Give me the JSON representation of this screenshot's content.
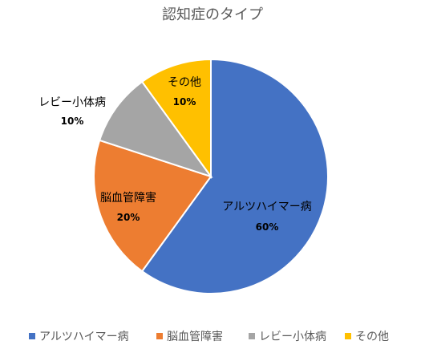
{
  "chart_data": {
    "type": "pie",
    "title": "認知症のタイプ",
    "categories": [
      "アルツハイマー病",
      "脳血管障害",
      "レビー小体病",
      "その他"
    ],
    "values": [
      60,
      20,
      10,
      10
    ],
    "value_labels": [
      "60%",
      "20%",
      "10%",
      "10%"
    ],
    "colors": [
      "#4472C4",
      "#ED7D31",
      "#A5A5A5",
      "#FFC000"
    ],
    "legend": "bottom",
    "start": "top, clockwise"
  }
}
